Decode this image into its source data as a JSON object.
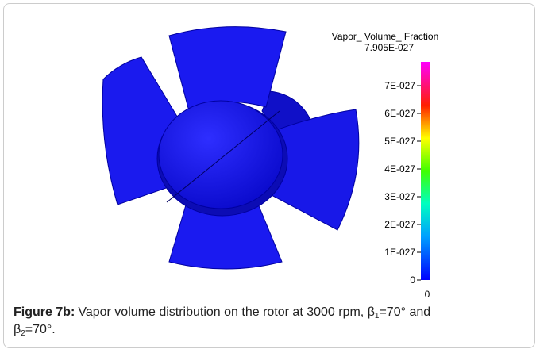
{
  "colorbar": {
    "title": "Vapor_ Volume_ Fraction",
    "max_label": "7.905E-027",
    "tick_labels": [
      "0",
      "1E-027",
      "2E-027",
      "3E-027",
      "4E-027",
      "5E-027",
      "6E-027",
      "7E-027"
    ],
    "min_label": "0"
  },
  "caption": {
    "label": "Figure 7b:",
    "text_1": "Vapor volume distribution on the rotor at 3000 rpm, β",
    "sub_1": "1",
    "text_2": "=70° and",
    "text_3": "β",
    "sub_2": "2",
    "text_4": "=70°."
  }
}
